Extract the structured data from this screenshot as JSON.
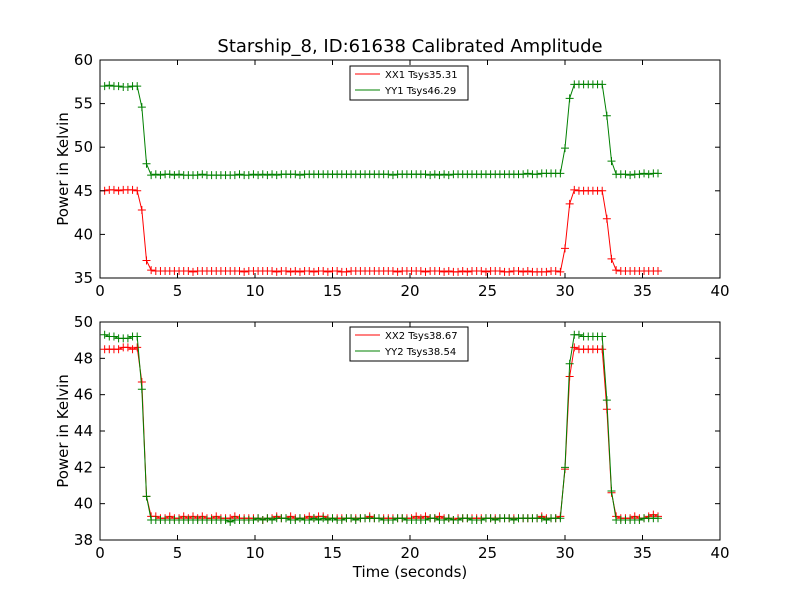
{
  "figure": {
    "title": "Starship_8, ID:61638 Calibrated Amplitude",
    "xlabel": "Time (seconds)"
  },
  "chart_data": [
    {
      "type": "line",
      "ylabel": "Power in Kelvin",
      "xlim": [
        0,
        40
      ],
      "ylim": [
        35,
        60
      ],
      "xticks": [
        0,
        5,
        10,
        15,
        20,
        25,
        30,
        35,
        40
      ],
      "yticks": [
        35,
        40,
        45,
        50,
        55,
        60
      ],
      "grid": false,
      "legend_position": "top-center",
      "marker": "+",
      "x": [
        0.3,
        0.6,
        0.9,
        1.2,
        1.5,
        1.8,
        2.1,
        2.4,
        2.7,
        3.0,
        3.3,
        3.6,
        3.9,
        4.2,
        4.5,
        4.8,
        5.1,
        5.4,
        5.7,
        6.0,
        6.3,
        6.6,
        6.9,
        7.2,
        7.5,
        7.8,
        8.1,
        8.4,
        8.7,
        9.0,
        9.3,
        9.6,
        9.9,
        10.2,
        10.5,
        10.8,
        11.1,
        11.4,
        11.7,
        12.0,
        12.3,
        12.6,
        12.9,
        13.2,
        13.5,
        13.8,
        14.1,
        14.4,
        14.7,
        15.0,
        15.3,
        15.6,
        15.9,
        16.2,
        16.5,
        16.8,
        17.1,
        17.4,
        17.7,
        18.0,
        18.3,
        18.6,
        18.9,
        19.2,
        19.5,
        19.8,
        20.1,
        20.4,
        20.7,
        21.0,
        21.3,
        21.6,
        21.9,
        22.2,
        22.5,
        22.8,
        23.1,
        23.4,
        23.7,
        24.0,
        24.3,
        24.6,
        24.9,
        25.2,
        25.5,
        25.8,
        26.1,
        26.4,
        26.7,
        27.0,
        27.3,
        27.6,
        27.9,
        28.2,
        28.5,
        28.8,
        29.1,
        29.4,
        29.7,
        30.0,
        30.3,
        30.6,
        30.9,
        31.2,
        31.5,
        31.8,
        32.1,
        32.4,
        32.7,
        33.0,
        33.3,
        33.6,
        33.9,
        34.2,
        34.5,
        34.8,
        35.1,
        35.4,
        35.7,
        36.0
      ],
      "series": [
        {
          "name": "XX1 Tsys35.31",
          "color": "#ff0000",
          "values": [
            45.0,
            45.1,
            45.1,
            45.0,
            45.1,
            45.1,
            45.1,
            45.0,
            42.8,
            37.0,
            35.9,
            35.8,
            35.8,
            35.8,
            35.8,
            35.8,
            35.8,
            35.8,
            35.8,
            35.7,
            35.8,
            35.8,
            35.8,
            35.8,
            35.8,
            35.8,
            35.8,
            35.8,
            35.8,
            35.8,
            35.7,
            35.8,
            35.8,
            35.8,
            35.8,
            35.8,
            35.8,
            35.7,
            35.8,
            35.8,
            35.7,
            35.8,
            35.7,
            35.8,
            35.8,
            35.7,
            35.8,
            35.8,
            35.7,
            35.8,
            35.8,
            35.7,
            35.7,
            35.8,
            35.8,
            35.8,
            35.8,
            35.8,
            35.8,
            35.8,
            35.8,
            35.8,
            35.8,
            35.7,
            35.8,
            35.8,
            35.8,
            35.8,
            35.8,
            35.7,
            35.8,
            35.8,
            35.8,
            35.7,
            35.8,
            35.7,
            35.7,
            35.8,
            35.7,
            35.8,
            35.8,
            35.8,
            35.7,
            35.8,
            35.8,
            35.8,
            35.7,
            35.7,
            35.8,
            35.8,
            35.7,
            35.8,
            35.7,
            35.7,
            35.7,
            35.7,
            35.8,
            35.8,
            35.7,
            38.4,
            43.5,
            45.1,
            45.0,
            45.0,
            45.0,
            45.0,
            45.0,
            45.0,
            41.8,
            37.2,
            35.9,
            35.8,
            35.8,
            35.8,
            35.8,
            35.8,
            35.8,
            35.8,
            35.8,
            35.8
          ]
        },
        {
          "name": "YY1 Tsys46.29",
          "color": "#008000",
          "values": [
            57.0,
            57.1,
            57.0,
            57.0,
            56.9,
            56.9,
            57.0,
            57.0,
            54.6,
            48.1,
            46.8,
            46.9,
            46.8,
            46.9,
            46.9,
            46.8,
            46.9,
            46.8,
            46.8,
            46.8,
            46.8,
            46.9,
            46.8,
            46.8,
            46.8,
            46.8,
            46.8,
            46.8,
            46.8,
            46.9,
            46.8,
            46.8,
            46.9,
            46.8,
            46.9,
            46.8,
            46.9,
            46.8,
            46.9,
            46.9,
            46.9,
            46.9,
            46.8,
            46.9,
            46.9,
            46.9,
            46.9,
            46.9,
            46.9,
            46.9,
            46.9,
            46.9,
            46.9,
            46.9,
            46.9,
            46.9,
            46.9,
            46.9,
            46.9,
            46.9,
            46.9,
            46.9,
            46.8,
            46.9,
            46.9,
            46.9,
            46.9,
            46.9,
            46.9,
            46.9,
            46.8,
            46.9,
            46.8,
            46.9,
            46.8,
            46.9,
            46.9,
            46.9,
            46.9,
            46.9,
            46.9,
            46.9,
            46.9,
            46.9,
            46.9,
            46.9,
            46.9,
            46.9,
            46.9,
            46.9,
            46.9,
            47.0,
            46.9,
            46.9,
            47.0,
            47.0,
            47.0,
            47.0,
            47.0,
            49.9,
            55.6,
            57.2,
            57.2,
            57.2,
            57.2,
            57.2,
            57.2,
            57.2,
            53.6,
            48.4,
            46.9,
            46.9,
            46.9,
            46.8,
            46.9,
            46.9,
            47.0,
            46.9,
            47.0,
            47.0
          ]
        }
      ]
    },
    {
      "type": "line",
      "ylabel": "Power in Kelvin",
      "xlim": [
        0,
        40
      ],
      "ylim": [
        38,
        50
      ],
      "xticks": [
        0,
        5,
        10,
        15,
        20,
        25,
        30,
        35,
        40
      ],
      "yticks": [
        38,
        40,
        42,
        44,
        46,
        48,
        50
      ],
      "grid": false,
      "legend_position": "top-center",
      "marker": "+",
      "x": [
        0.3,
        0.6,
        0.9,
        1.2,
        1.5,
        1.8,
        2.1,
        2.4,
        2.7,
        3.0,
        3.3,
        3.6,
        3.9,
        4.2,
        4.5,
        4.8,
        5.1,
        5.4,
        5.7,
        6.0,
        6.3,
        6.6,
        6.9,
        7.2,
        7.5,
        7.8,
        8.1,
        8.4,
        8.7,
        9.0,
        9.3,
        9.6,
        9.9,
        10.2,
        10.5,
        10.8,
        11.1,
        11.4,
        11.7,
        12.0,
        12.3,
        12.6,
        12.9,
        13.2,
        13.5,
        13.8,
        14.1,
        14.4,
        14.7,
        15.0,
        15.3,
        15.6,
        15.9,
        16.2,
        16.5,
        16.8,
        17.1,
        17.4,
        17.7,
        18.0,
        18.3,
        18.6,
        18.9,
        19.2,
        19.5,
        19.8,
        20.1,
        20.4,
        20.7,
        21.0,
        21.3,
        21.6,
        21.9,
        22.2,
        22.5,
        22.8,
        23.1,
        23.4,
        23.7,
        24.0,
        24.3,
        24.6,
        24.9,
        25.2,
        25.5,
        25.8,
        26.1,
        26.4,
        26.7,
        27.0,
        27.3,
        27.6,
        27.9,
        28.2,
        28.5,
        28.8,
        29.1,
        29.4,
        29.7,
        30.0,
        30.3,
        30.6,
        30.9,
        31.2,
        31.5,
        31.8,
        32.1,
        32.4,
        32.7,
        33.0,
        33.3,
        33.6,
        33.9,
        34.2,
        34.5,
        34.8,
        35.1,
        35.4,
        35.7,
        36.0
      ],
      "series": [
        {
          "name": "XX2 Tsys38.67",
          "color": "#ff0000",
          "values": [
            48.5,
            48.5,
            48.5,
            48.5,
            48.6,
            48.6,
            48.5,
            48.6,
            46.7,
            40.4,
            39.3,
            39.3,
            39.2,
            39.2,
            39.3,
            39.2,
            39.2,
            39.3,
            39.2,
            39.3,
            39.2,
            39.3,
            39.2,
            39.2,
            39.3,
            39.2,
            39.2,
            39.2,
            39.3,
            39.2,
            39.2,
            39.2,
            39.2,
            39.2,
            39.1,
            39.2,
            39.2,
            39.3,
            39.2,
            39.2,
            39.3,
            39.2,
            39.2,
            39.2,
            39.3,
            39.2,
            39.3,
            39.3,
            39.2,
            39.2,
            39.2,
            39.2,
            39.2,
            39.2,
            39.2,
            39.2,
            39.2,
            39.3,
            39.2,
            39.2,
            39.2,
            39.2,
            39.2,
            39.2,
            39.2,
            39.2,
            39.2,
            39.3,
            39.2,
            39.3,
            39.2,
            39.2,
            39.3,
            39.2,
            39.2,
            39.1,
            39.2,
            39.2,
            39.2,
            39.2,
            39.2,
            39.2,
            39.2,
            39.2,
            39.2,
            39.2,
            39.2,
            39.2,
            39.2,
            39.2,
            39.2,
            39.2,
            39.2,
            39.2,
            39.3,
            39.2,
            39.2,
            39.2,
            39.3,
            41.9,
            47.0,
            48.6,
            48.5,
            48.5,
            48.5,
            48.5,
            48.5,
            48.5,
            45.2,
            40.6,
            39.3,
            39.2,
            39.2,
            39.2,
            39.3,
            39.2,
            39.2,
            39.3,
            39.4,
            39.3
          ]
        },
        {
          "name": "YY2 Tsys38.54",
          "color": "#008000",
          "values": [
            49.3,
            49.2,
            49.2,
            49.1,
            49.1,
            49.1,
            49.2,
            49.2,
            46.3,
            40.4,
            39.1,
            39.1,
            39.1,
            39.1,
            39.1,
            39.1,
            39.1,
            39.1,
            39.1,
            39.1,
            39.1,
            39.1,
            39.1,
            39.1,
            39.1,
            39.1,
            39.1,
            39.0,
            39.1,
            39.1,
            39.1,
            39.1,
            39.1,
            39.2,
            39.1,
            39.2,
            39.1,
            39.2,
            39.2,
            39.2,
            39.1,
            39.1,
            39.2,
            39.1,
            39.1,
            39.2,
            39.1,
            39.2,
            39.1,
            39.2,
            39.1,
            39.1,
            39.2,
            39.2,
            39.1,
            39.2,
            39.2,
            39.2,
            39.2,
            39.2,
            39.1,
            39.1,
            39.1,
            39.2,
            39.2,
            39.1,
            39.1,
            39.1,
            39.1,
            39.1,
            39.2,
            39.2,
            39.1,
            39.1,
            39.2,
            39.1,
            39.1,
            39.2,
            39.2,
            39.1,
            39.1,
            39.1,
            39.2,
            39.2,
            39.1,
            39.2,
            39.2,
            39.2,
            39.1,
            39.2,
            39.2,
            39.2,
            39.2,
            39.2,
            39.2,
            39.1,
            39.2,
            39.2,
            39.2,
            42.0,
            47.7,
            49.3,
            49.3,
            49.2,
            49.2,
            49.2,
            49.2,
            49.2,
            45.7,
            40.7,
            39.1,
            39.1,
            39.1,
            39.1,
            39.1,
            39.1,
            39.2,
            39.2,
            39.2,
            39.2
          ]
        }
      ]
    }
  ]
}
